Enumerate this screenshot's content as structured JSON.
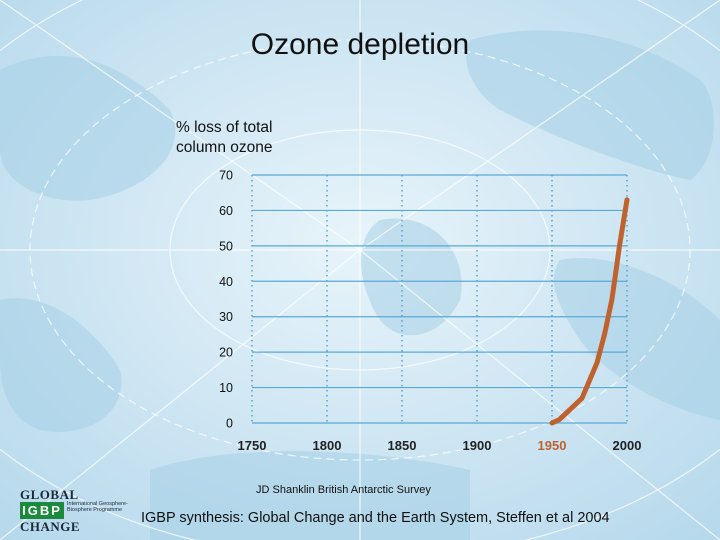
{
  "slide": {
    "title": "Ozone depletion",
    "credit": "JD Shanklin British Antarctic Survey",
    "source": "IGBP synthesis: Global Change and the Earth System, Steffen et al 2004"
  },
  "logo": {
    "line1": "GLOBAL",
    "line2": "IGBP",
    "line3": "CHANGE",
    "small_text": "International Geosphere-Biosphere Programme"
  },
  "colors": {
    "background": "#cfe6f3",
    "grid": "#5aa9d6",
    "series": "#c0622e",
    "highlight_tick": "#c0622e"
  },
  "chart_data": {
    "type": "line",
    "ylabel_lines": [
      "% loss of total",
      "column ozone"
    ],
    "xlim": [
      1750,
      2000
    ],
    "ylim": [
      0,
      70
    ],
    "x_ticks": [
      1750,
      1800,
      1850,
      1900,
      1950,
      2000
    ],
    "y_ticks": [
      0,
      10,
      20,
      30,
      40,
      50,
      60,
      70
    ],
    "highlight_x_tick": 1950,
    "grid": true,
    "series": [
      {
        "x": [
          1950,
          1955,
          1960,
          1965,
          1970,
          1975,
          1980,
          1985,
          1990,
          1995,
          2000
        ],
        "y": [
          0,
          1,
          3,
          5,
          7,
          12,
          17,
          25,
          35,
          50,
          63
        ]
      }
    ]
  }
}
